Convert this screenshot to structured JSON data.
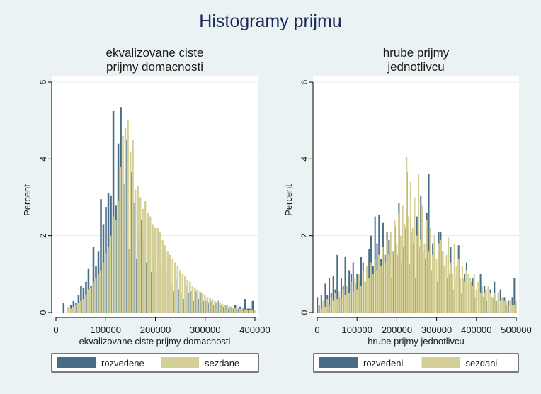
{
  "window": {
    "title": "Histogramy prijmu"
  },
  "colors": {
    "background": "#eaf2f3",
    "plot_background": "#ffffff",
    "gridline": "#e6ecee",
    "series_1": "#476d89",
    "series_2": "#d4cf96",
    "text": "#1a1a1a",
    "title": "#1c2a5a"
  },
  "chart_data": [
    {
      "type": "bar",
      "title": "ekvalizovane ciste\nprijmy domacnosti",
      "xlabel": "ekvalizovane ciste prijmy domacnosti",
      "ylabel": "Percent",
      "xlim": [
        0,
        400000
      ],
      "ylim": [
        0,
        6
      ],
      "xticks": [
        0,
        100000,
        200000,
        300000,
        400000
      ],
      "yticks": [
        0,
        2,
        4,
        6
      ],
      "grid": true,
      "legend": "bottom",
      "bin_width": 5000,
      "series": [
        {
          "name": "rozvedene",
          "color": "#476d89",
          "x": [
            17500,
            27500,
            32500,
            37500,
            42500,
            47500,
            52500,
            57500,
            62500,
            67500,
            72500,
            77500,
            82500,
            87500,
            92500,
            97500,
            102500,
            107500,
            112500,
            117500,
            122500,
            127500,
            132500,
            137500,
            142500,
            147500,
            152500,
            157500,
            162500,
            167500,
            172500,
            177500,
            182500,
            187500,
            192500,
            197500,
            202500,
            207500,
            212500,
            217500,
            222500,
            227500,
            232500,
            237500,
            242500,
            247500,
            252500,
            257500,
            262500,
            267500,
            272500,
            277500,
            282500,
            287500,
            292500,
            297500,
            302500,
            307500,
            312500,
            317500,
            322500,
            327500,
            332500,
            337500,
            342500,
            347500,
            352500,
            357500,
            362500,
            367500,
            372500,
            377500,
            382500,
            387500,
            392500,
            397500
          ],
          "values": [
            0.25,
            0.1,
            0.2,
            0.3,
            0.25,
            0.45,
            0.7,
            0.65,
            0.8,
            1.15,
            0.7,
            1.7,
            1.2,
            1.6,
            2.95,
            2.3,
            2.75,
            3.1,
            3.05,
            5.25,
            2.8,
            4.4,
            5.35,
            3.35,
            4.5,
            1.65,
            3.65,
            2.85,
            1.4,
            1.95,
            2.4,
            1.85,
            1.3,
            1.55,
            1.05,
            1.5,
            1.1,
            1.05,
            1.25,
            0.85,
            1.0,
            0.8,
            0.75,
            0.55,
            0.85,
            0.6,
            0.5,
            0.35,
            0.7,
            0.5,
            0.55,
            0.3,
            0.55,
            0.35,
            0.5,
            0.3,
            0.3,
            0.25,
            0.3,
            0.2,
            0.25,
            0.3,
            0.2,
            0.15,
            0.2,
            0.1,
            0.15,
            0.1,
            0.2,
            0.1,
            0.15,
            0.1,
            0.35,
            0.1,
            0.1,
            0.3
          ]
        },
        {
          "name": "sezdane",
          "color": "#d4cf96",
          "x": [
            22500,
            27500,
            32500,
            37500,
            42500,
            47500,
            52500,
            57500,
            62500,
            67500,
            72500,
            77500,
            82500,
            87500,
            92500,
            97500,
            102500,
            107500,
            112500,
            117500,
            122500,
            127500,
            132500,
            137500,
            142500,
            147500,
            152500,
            157500,
            162500,
            167500,
            172500,
            177500,
            182500,
            187500,
            192500,
            197500,
            202500,
            207500,
            212500,
            217500,
            222500,
            227500,
            232500,
            237500,
            242500,
            247500,
            252500,
            257500,
            262500,
            267500,
            272500,
            277500,
            282500,
            287500,
            292500,
            297500,
            302500,
            307500,
            312500,
            317500,
            322500,
            327500,
            332500,
            337500,
            342500,
            347500,
            352500,
            357500,
            362500,
            367500,
            372500,
            377500,
            382500,
            387500,
            392500,
            397500
          ],
          "values": [
            0.15,
            0.1,
            0.15,
            0.2,
            0.25,
            0.3,
            0.35,
            0.45,
            0.6,
            0.65,
            0.8,
            0.9,
            1.0,
            1.1,
            1.3,
            1.55,
            1.7,
            2.0,
            2.5,
            2.4,
            2.9,
            3.8,
            4.6,
            4.8,
            5.0,
            4.2,
            4.5,
            3.2,
            3.3,
            3.0,
            2.7,
            2.9,
            2.6,
            2.5,
            2.3,
            2.2,
            2.2,
            2.1,
            1.9,
            1.75,
            1.6,
            1.5,
            1.4,
            1.3,
            1.2,
            1.1,
            1.0,
            0.95,
            0.85,
            0.8,
            0.7,
            0.65,
            0.6,
            0.55,
            0.5,
            0.45,
            0.4,
            0.38,
            0.35,
            0.3,
            0.3,
            0.25,
            0.22,
            0.2,
            0.18,
            0.15,
            0.13,
            0.12,
            0.1,
            0.1,
            0.09,
            0.08,
            0.07,
            0.06,
            0.05,
            0.05
          ]
        }
      ]
    },
    {
      "type": "bar",
      "title": "hrube prijmy\njednotlivcu",
      "xlabel": "hrube prijmy jednotlivcu",
      "ylabel": "Percent",
      "xlim": [
        0,
        500000
      ],
      "ylim": [
        0,
        6
      ],
      "xticks": [
        0,
        100000,
        200000,
        300000,
        400000,
        500000
      ],
      "yticks": [
        0,
        2,
        4,
        6
      ],
      "grid": true,
      "legend": "bottom",
      "bin_width": 5000,
      "series": [
        {
          "name": "rozvedeni",
          "color": "#476d89",
          "x": [
            2500,
            7500,
            12500,
            17500,
            22500,
            27500,
            32500,
            37500,
            42500,
            47500,
            52500,
            57500,
            62500,
            67500,
            72500,
            77500,
            82500,
            87500,
            92500,
            97500,
            102500,
            107500,
            112500,
            117500,
            122500,
            127500,
            132500,
            137500,
            142500,
            147500,
            152500,
            157500,
            162500,
            167500,
            172500,
            177500,
            182500,
            187500,
            192500,
            197500,
            202500,
            207500,
            212500,
            217500,
            222500,
            227500,
            232500,
            237500,
            242500,
            247500,
            252500,
            257500,
            262500,
            267500,
            272500,
            277500,
            282500,
            287500,
            292500,
            297500,
            302500,
            307500,
            312500,
            317500,
            322500,
            327500,
            332500,
            337500,
            342500,
            347500,
            352500,
            357500,
            362500,
            367500,
            372500,
            377500,
            382500,
            387500,
            392500,
            397500,
            402500,
            407500,
            412500,
            417500,
            422500,
            427500,
            432500,
            437500,
            442500,
            447500,
            452500,
            457500,
            462500,
            467500,
            472500,
            477500,
            482500,
            487500,
            492500,
            497500
          ],
          "values": [
            0.4,
            0.2,
            0.45,
            0.3,
            0.75,
            0.45,
            0.9,
            0.5,
            0.95,
            0.6,
            1.5,
            0.4,
            0.9,
            0.7,
            1.45,
            0.55,
            1.1,
            1.0,
            1.3,
            0.75,
            1.0,
            0.8,
            1.45,
            1.3,
            0.8,
            0.9,
            1.65,
            2.0,
            1.2,
            2.5,
            1.8,
            2.55,
            1.4,
            2.35,
            1.5,
            2.1,
            1.9,
            0.9,
            1.6,
            2.25,
            1.5,
            2.85,
            1.3,
            1.7,
            2.2,
            3.65,
            1.25,
            2.1,
            1.8,
            0.9,
            2.5,
            1.7,
            3.05,
            1.6,
            1.4,
            2.6,
            3.6,
            1.1,
            1.8,
            2.0,
            0.8,
            2.1,
            2.1,
            1.6,
            1.2,
            0.9,
            1.0,
            1.7,
            0.6,
            0.9,
            1.2,
            1.75,
            0.5,
            0.9,
            1.0,
            1.3,
            0.4,
            0.8,
            0.9,
            0.4,
            0.6,
            0.5,
            1.0,
            0.4,
            0.7,
            0.3,
            0.5,
            0.6,
            0.4,
            0.8,
            0.3,
            0.3,
            0.6,
            0.3,
            0.4,
            0.2,
            0.3,
            0.3,
            0.4,
            0.9
          ]
        },
        {
          "name": "sezdani",
          "color": "#d4cf96",
          "x": [
            2500,
            7500,
            12500,
            17500,
            22500,
            27500,
            32500,
            37500,
            42500,
            47500,
            52500,
            57500,
            62500,
            67500,
            72500,
            77500,
            82500,
            87500,
            92500,
            97500,
            102500,
            107500,
            112500,
            117500,
            122500,
            127500,
            132500,
            137500,
            142500,
            147500,
            152500,
            157500,
            162500,
            167500,
            172500,
            177500,
            182500,
            187500,
            192500,
            197500,
            202500,
            207500,
            212500,
            217500,
            222500,
            227500,
            232500,
            237500,
            242500,
            247500,
            252500,
            257500,
            262500,
            267500,
            272500,
            277500,
            282500,
            287500,
            292500,
            297500,
            302500,
            307500,
            312500,
            317500,
            322500,
            327500,
            332500,
            337500,
            342500,
            347500,
            352500,
            357500,
            362500,
            367500,
            372500,
            377500,
            382500,
            387500,
            392500,
            397500,
            402500,
            407500,
            412500,
            417500,
            422500,
            427500,
            432500,
            437500,
            442500,
            447500,
            452500,
            457500,
            462500,
            467500,
            472500,
            477500,
            482500,
            487500,
            492500,
            497500
          ],
          "values": [
            0.2,
            0.1,
            0.3,
            0.15,
            0.35,
            0.2,
            0.4,
            0.3,
            0.5,
            0.35,
            0.55,
            0.4,
            0.6,
            0.45,
            0.7,
            0.5,
            0.8,
            0.55,
            0.9,
            0.6,
            1.0,
            0.7,
            1.1,
            0.8,
            1.2,
            0.9,
            1.3,
            1.0,
            1.4,
            1.1,
            1.5,
            1.2,
            1.7,
            1.3,
            1.9,
            1.5,
            2.1,
            1.6,
            2.4,
            1.8,
            2.6,
            2.0,
            2.8,
            2.3,
            4.05,
            2.5,
            3.4,
            2.2,
            3.0,
            2.0,
            3.6,
            1.9,
            2.8,
            1.8,
            2.4,
            1.6,
            2.2,
            1.5,
            2.0,
            1.4,
            1.8,
            1.9,
            1.6,
            1.2,
            1.5,
            1.95,
            1.3,
            1.0,
            1.8,
            1.2,
            1.4,
            0.9,
            1.2,
            0.8,
            1.1,
            1.0,
            0.9,
            0.7,
            1.0,
            0.6,
            0.8,
            0.5,
            0.7,
            0.5,
            0.6,
            0.7,
            0.5,
            0.4,
            0.5,
            0.3,
            0.5,
            0.3,
            0.4,
            0.3,
            0.3,
            0.2,
            0.3,
            0.2,
            0.2,
            0.3
          ]
        }
      ]
    }
  ]
}
